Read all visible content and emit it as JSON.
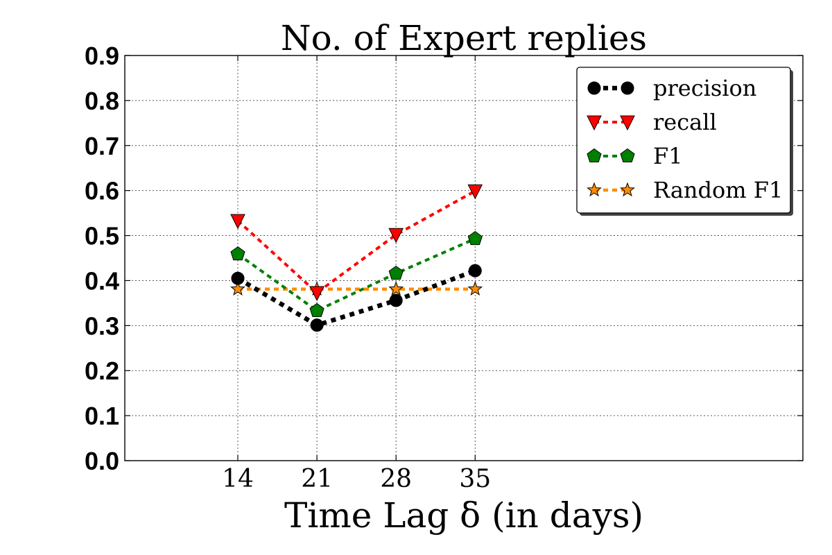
{
  "chart_data": {
    "type": "line",
    "title": "No. of Expert replies",
    "xlabel": "Time Lag δ (in days)",
    "ylabel": "",
    "x": [
      14,
      21,
      28,
      35
    ],
    "x_tick_labels": [
      "14",
      "21",
      "28",
      "35"
    ],
    "xlim": [
      4,
      64
    ],
    "ylim": [
      0.0,
      0.9
    ],
    "y_tick_labels": [
      "0.0",
      "0.1",
      "0.2",
      "0.3",
      "0.4",
      "0.5",
      "0.6",
      "0.7",
      "0.8",
      "0.9"
    ],
    "grid": true,
    "legend_position": "top-right",
    "series": [
      {
        "name": "precision",
        "values": [
          0.405,
          0.301,
          0.356,
          0.422
        ],
        "color": "#000000",
        "marker": "circle"
      },
      {
        "name": "recall",
        "values": [
          0.533,
          0.373,
          0.502,
          0.599
        ],
        "color": "#ff0000",
        "marker": "triangle-down"
      },
      {
        "name": "F1",
        "values": [
          0.459,
          0.333,
          0.416,
          0.493
        ],
        "color": "#008000",
        "marker": "pentagon"
      },
      {
        "name": "Random F1",
        "values": [
          0.381,
          0.381,
          0.381,
          0.381
        ],
        "color": "#ff8c00",
        "marker": "star"
      }
    ]
  }
}
